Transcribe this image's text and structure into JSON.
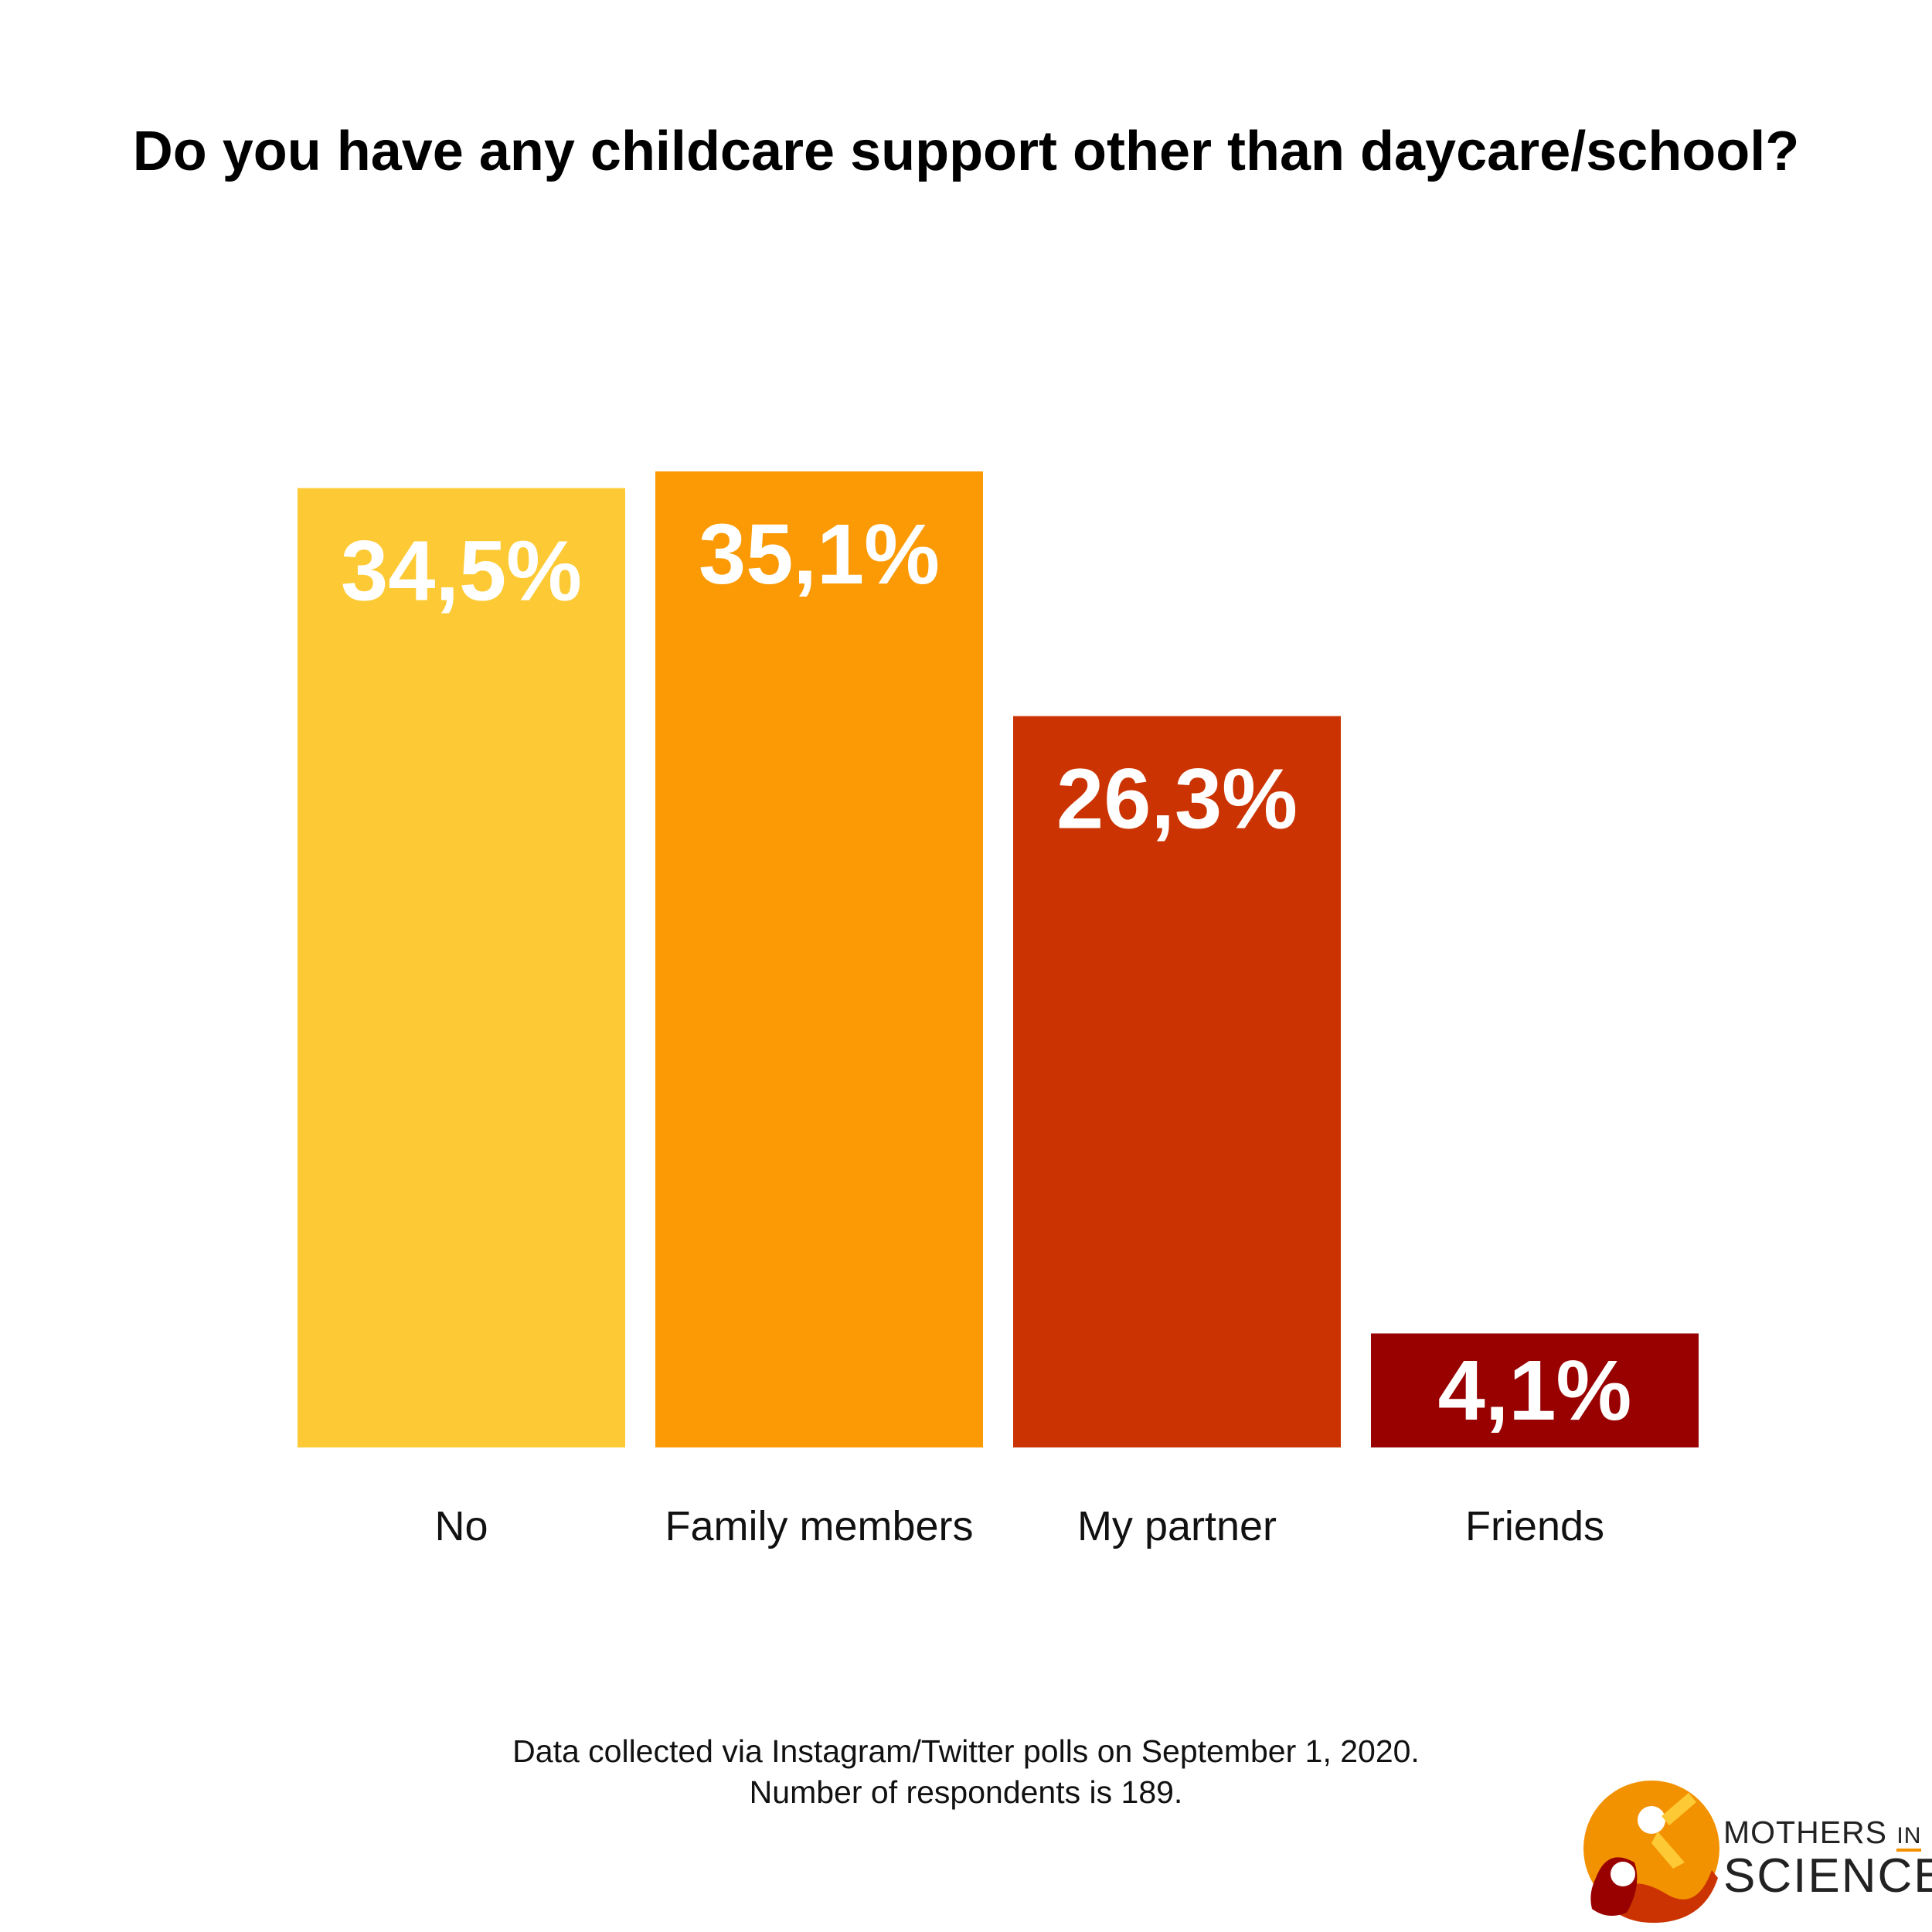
{
  "title": "Do you have any childcare support other than daycare/school?",
  "chart_data": {
    "type": "bar",
    "title": "Do you have any childcare support other than daycare/school?",
    "categories": [
      "No",
      "Family members",
      "My partner",
      "Friends"
    ],
    "values": [
      34.5,
      35.1,
      26.3,
      4.1
    ],
    "value_labels": [
      "34,5%",
      "35,1%",
      "26,3%",
      "4,1%"
    ],
    "colors": [
      "#fdca35",
      "#fb9a04",
      "#cb3402",
      "#990000"
    ],
    "xlabel": "",
    "ylabel": "",
    "ylim": [
      0,
      35.1
    ],
    "grid": false,
    "legend": "none"
  },
  "footnote": {
    "line1": "Data collected via Instagram/Twitter polls on September 1, 2020.",
    "line2": "Number of respondents is 189."
  },
  "logo": {
    "line1_main": "MOTHERS",
    "line1_small": "IN",
    "line2": "SCIENCE"
  }
}
